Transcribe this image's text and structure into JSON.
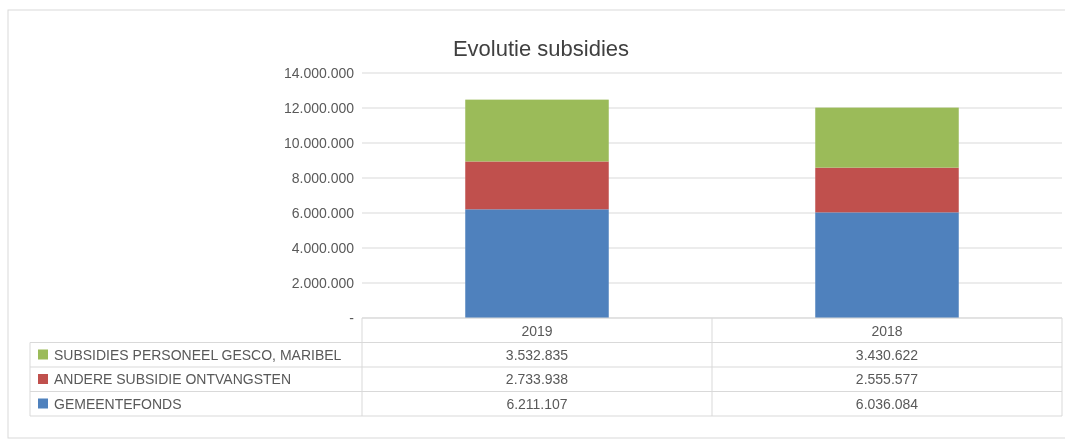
{
  "chart_data": {
    "type": "bar",
    "title": "Evolutie subsidies",
    "stacked": true,
    "categories": [
      "2019",
      "2018"
    ],
    "series": [
      {
        "name": "GEMEENTEFONDS",
        "color": "#4f81bd",
        "values": [
          6211107,
          6036084
        ],
        "value_labels": [
          "6.211.107",
          "6.036.084"
        ]
      },
      {
        "name": "ANDERE SUBSIDIE ONTVANGSTEN",
        "color": "#c0504d",
        "values": [
          2733938,
          2555577
        ],
        "value_labels": [
          "2.733.938",
          "2.555.577"
        ]
      },
      {
        "name": "SUBSIDIES PERSONEEL GESCO, MARIBEL",
        "color": "#9bbb59",
        "values": [
          3532835,
          3430622
        ],
        "value_labels": [
          "3.532.835",
          "3.430.622"
        ]
      }
    ],
    "ylim": [
      0,
      14000000
    ],
    "yticks": [
      {
        "value": 0,
        "label": "-"
      },
      {
        "value": 2000000,
        "label": "2.000.000"
      },
      {
        "value": 4000000,
        "label": "4.000.000"
      },
      {
        "value": 6000000,
        "label": "6.000.000"
      },
      {
        "value": 8000000,
        "label": "8.000.000"
      },
      {
        "value": 10000000,
        "label": "10.000.000"
      },
      {
        "value": 12000000,
        "label": "12.000.000"
      },
      {
        "value": 14000000,
        "label": "14.000.000"
      }
    ],
    "grid": "y",
    "legend": "bottom"
  }
}
